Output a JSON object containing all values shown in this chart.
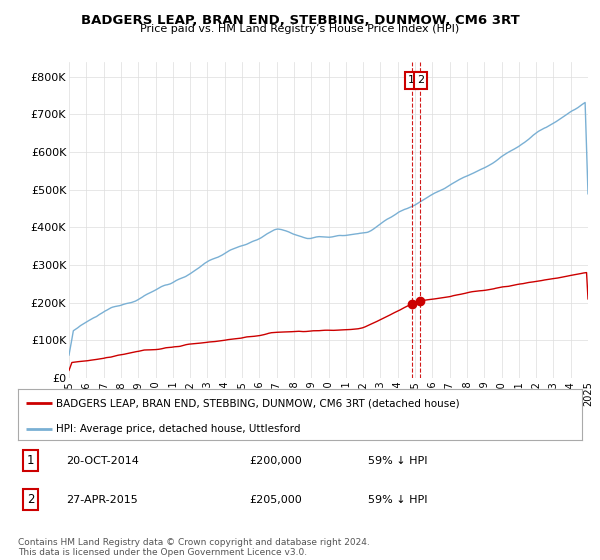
{
  "title": "BADGERS LEAP, BRAN END, STEBBING, DUNMOW, CM6 3RT",
  "subtitle": "Price paid vs. HM Land Registry’s House Price Index (HPI)",
  "ylim": [
    0,
    840000
  ],
  "yticks": [
    0,
    100000,
    200000,
    300000,
    400000,
    500000,
    600000,
    700000,
    800000
  ],
  "ytick_labels": [
    "£0",
    "£100K",
    "£200K",
    "£300K",
    "£400K",
    "£500K",
    "£600K",
    "£700K",
    "£800K"
  ],
  "red_line_color": "#cc0000",
  "blue_line_color": "#7ab0d4",
  "annotation_box_color": "#cc0000",
  "vline_color": "#cc0000",
  "background_color": "#ffffff",
  "grid_color": "#dddddd",
  "legend_label_red": "BADGERS LEAP, BRAN END, STEBBING, DUNMOW, CM6 3RT (detached house)",
  "legend_label_blue": "HPI: Average price, detached house, Uttlesford",
  "transaction1_label": "1",
  "transaction1_date": "20-OCT-2014",
  "transaction1_price": "£200,000",
  "transaction1_hpi": "59% ↓ HPI",
  "transaction2_label": "2",
  "transaction2_date": "27-APR-2015",
  "transaction2_price": "£205,000",
  "transaction2_hpi": "59% ↓ HPI",
  "footer": "Contains HM Land Registry data © Crown copyright and database right 2024.\nThis data is licensed under the Open Government Licence v3.0.",
  "ann1_x": 2014.8,
  "ann2_x": 2015.3,
  "ann1_y": 200000,
  "ann2_y": 205000,
  "xmin": 1995,
  "xmax": 2025
}
